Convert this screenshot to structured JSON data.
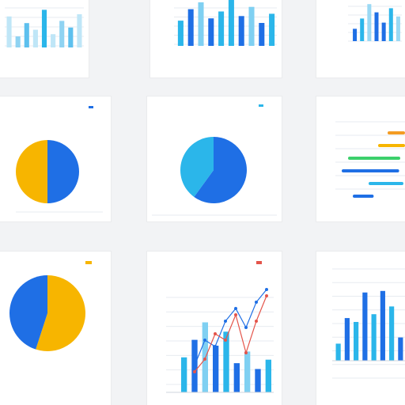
{
  "colors": {
    "yellow": "#f7b500",
    "blue": "#1f6fe5",
    "cyan": "#2bb6ea",
    "green": "#3cd06b",
    "orange": "#f39c24",
    "red": "#e4544a",
    "grid": "#e7ebf0"
  },
  "chart_data": [
    {
      "type": "bar",
      "title": "",
      "series": [
        {
          "values": [
            70,
            25,
            55,
            40,
            85,
            30,
            60,
            45,
            75
          ]
        }
      ]
    },
    {
      "type": "bar",
      "title": "",
      "series": [
        {
          "values": [
            55,
            80,
            95,
            60,
            75,
            100,
            65,
            85,
            50,
            70
          ]
        }
      ]
    },
    {
      "type": "bar",
      "title": "",
      "series": [
        {
          "values": [
            30,
            55,
            90,
            70,
            45,
            80,
            60
          ]
        }
      ]
    },
    {
      "type": "pie",
      "title": "",
      "series": [
        {
          "values": [
            50,
            50
          ]
        }
      ]
    },
    {
      "type": "pie",
      "title": "",
      "series": [
        {
          "values": [
            60,
            40
          ]
        }
      ]
    },
    {
      "type": "bar",
      "orientation": "horizontal",
      "title": "",
      "series": [
        {
          "values": [
            24,
            16,
            30,
            33,
            20,
            12
          ]
        }
      ]
    },
    {
      "type": "pie",
      "title": "",
      "series": [
        {
          "values": [
            55,
            45
          ]
        }
      ]
    },
    {
      "type": "line",
      "title": "",
      "series": [
        {
          "values": [
            2,
            6,
            5,
            9,
            11,
            8,
            12,
            14
          ]
        },
        {
          "values": [
            1,
            3,
            7,
            6,
            10,
            4,
            9,
            13
          ]
        }
      ]
    },
    {
      "type": "bar",
      "title": "",
      "series": [
        {
          "values": [
            22,
            55,
            50,
            88,
            60,
            90,
            70,
            30
          ]
        }
      ]
    }
  ]
}
